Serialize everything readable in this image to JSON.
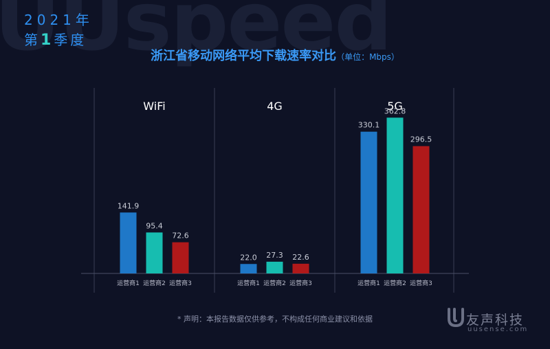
{
  "watermark": "UUspeed",
  "header": {
    "year": "2021年",
    "quarter_prefix": "第",
    "quarter_num": "1",
    "quarter_suffix": "季度"
  },
  "title": {
    "main": "浙江省移动网络平均下载速率对比",
    "unit": "（单位：Mbps）"
  },
  "footnote": "* 声明：本报告数据仅供参考，不构成任何商业建议和依据",
  "brand": {
    "name": "友声科技",
    "url": "uusense.com"
  },
  "colors": {
    "background": "#0e1225",
    "operator1": "#1f78c8",
    "operator2": "#17bdb0",
    "operator3": "#b0191a"
  },
  "chart_data": {
    "type": "bar",
    "groups": [
      "WiFi",
      "4G",
      "5G"
    ],
    "categories": [
      "运营商1",
      "运营商2",
      "运营商3"
    ],
    "series": [
      {
        "group": "WiFi",
        "values": [
          141.9,
          95.4,
          72.6
        ],
        "labels": [
          "141.9",
          "95.4",
          "72.6"
        ]
      },
      {
        "group": "4G",
        "values": [
          22.0,
          27.3,
          22.6
        ],
        "labels": [
          "22.0",
          "27.3",
          "22.6"
        ]
      },
      {
        "group": "5G",
        "values": [
          330.1,
          362.8,
          296.5
        ],
        "labels": [
          "330.1",
          "362.8",
          "296.5"
        ]
      }
    ],
    "ylim": [
      0,
      400
    ],
    "grid": false,
    "legend": "none"
  }
}
